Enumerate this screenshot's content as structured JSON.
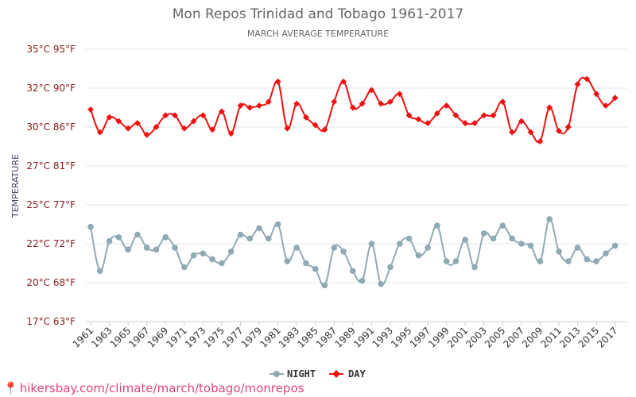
{
  "chart_data": {
    "type": "line",
    "title": "Mon Repos Trinidad and Tobago 1961-2017",
    "subtitle": "MARCH AVERAGE TEMPERATURE",
    "ylabel": "TEMPERATURE",
    "xlabel": "",
    "ylim": [
      17,
      35
    ],
    "y_ticks": [
      {
        "value": 17,
        "label": "17°C 63°F"
      },
      {
        "value": 20,
        "label": "20°C 68°F"
      },
      {
        "value": 22,
        "label": "22°C 72°F"
      },
      {
        "value": 25,
        "label": "25°C 77°F"
      },
      {
        "value": 27,
        "label": "27°C 81°F"
      },
      {
        "value": 30,
        "label": "30°C 86°F"
      },
      {
        "value": 32,
        "label": "32°C 90°F"
      },
      {
        "value": 35,
        "label": "35°C 95°F"
      }
    ],
    "x": [
      1961,
      1962,
      1963,
      1964,
      1965,
      1966,
      1967,
      1968,
      1969,
      1970,
      1971,
      1972,
      1973,
      1974,
      1975,
      1976,
      1977,
      1978,
      1979,
      1980,
      1981,
      1982,
      1983,
      1984,
      1985,
      1986,
      1987,
      1988,
      1989,
      1990,
      1991,
      1992,
      1993,
      1994,
      1995,
      1996,
      1997,
      1998,
      1999,
      2000,
      2001,
      2002,
      2003,
      2004,
      2005,
      2006,
      2007,
      2008,
      2009,
      2010,
      2011,
      2012,
      2013,
      2014,
      2015,
      2016,
      2017
    ],
    "x_tick_labels": [
      "1961",
      "1963",
      "1965",
      "1967",
      "1969",
      "1971",
      "1973",
      "1975",
      "1977",
      "1979",
      "1981",
      "1983",
      "1985",
      "1987",
      "1989",
      "1991",
      "1993",
      "1995",
      "1997",
      "1999",
      "2001",
      "2003",
      "2005",
      "2007",
      "2009",
      "2011",
      "2013",
      "2015",
      "2017"
    ],
    "grid": true,
    "legend_position": "bottom",
    "series": [
      {
        "name": "NIGHT",
        "color": "#90aab4",
        "values": [
          23.3,
          20.6,
          22.2,
          22.5,
          21.7,
          22.7,
          21.8,
          21.7,
          22.5,
          21.8,
          20.8,
          21.4,
          21.5,
          21.2,
          21.0,
          21.6,
          22.7,
          22.4,
          23.2,
          22.4,
          23.5,
          21.1,
          21.8,
          21.0,
          20.7,
          19.8,
          21.8,
          21.6,
          20.6,
          20.1,
          22.0,
          19.9,
          20.8,
          22.0,
          22.4,
          21.4,
          21.8,
          23.4,
          21.1,
          21.1,
          22.3,
          20.8,
          22.8,
          22.4,
          23.4,
          22.4,
          22.0,
          21.9,
          21.1,
          23.9,
          21.6,
          21.1,
          21.8,
          21.2,
          21.1,
          21.5,
          21.9
        ]
      },
      {
        "name": "DAY",
        "color": "#ee1111",
        "values": [
          30.9,
          29.6,
          30.5,
          30.3,
          29.9,
          30.2,
          29.4,
          30.0,
          30.6,
          30.6,
          29.9,
          30.3,
          30.6,
          29.8,
          30.8,
          29.5,
          31.1,
          31.0,
          31.1,
          31.3,
          32.5,
          29.9,
          31.2,
          30.5,
          30.1,
          29.8,
          31.3,
          32.5,
          31.0,
          31.2,
          31.9,
          31.2,
          31.3,
          31.7,
          30.6,
          30.4,
          30.2,
          30.7,
          31.1,
          30.6,
          30.2,
          30.2,
          30.6,
          30.6,
          31.3,
          29.6,
          30.3,
          29.6,
          28.9,
          31.0,
          29.7,
          30.0,
          32.3,
          32.7,
          31.7,
          31.1,
          31.5
        ]
      }
    ]
  },
  "source_text": "hikersbay.com/climate/march/tobago/monrepos"
}
